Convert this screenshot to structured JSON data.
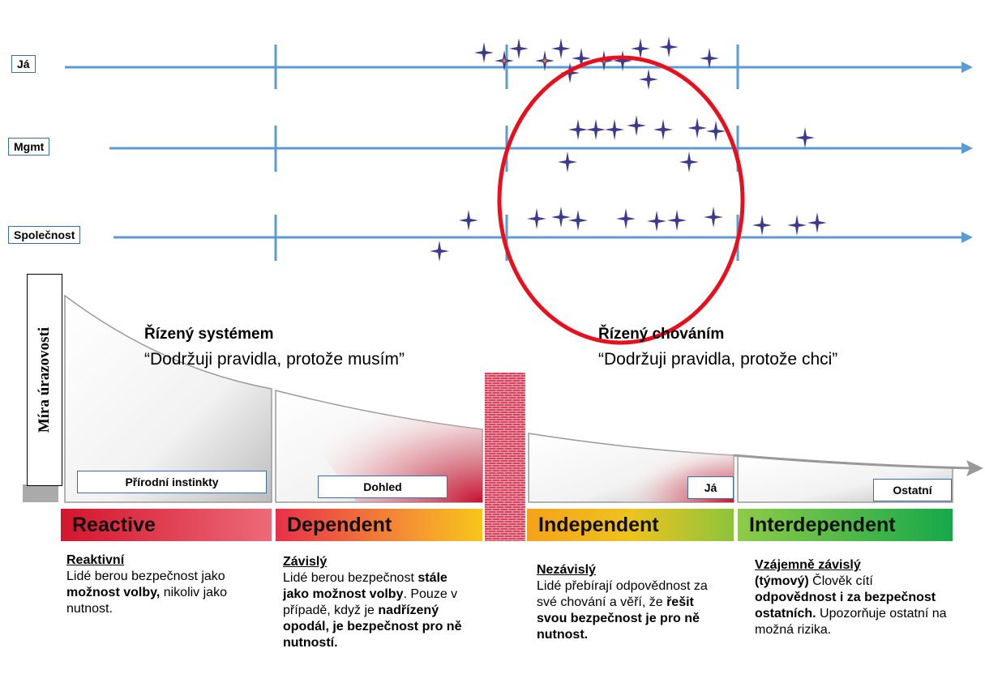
{
  "rows": [
    {
      "label": "Já"
    },
    {
      "label": "Mgmt"
    },
    {
      "label": "Společnost"
    }
  ],
  "y_axis_label": "Míra úrazovosti",
  "zones": [
    {
      "heading": "Řízený systémem",
      "quote": "“Dodržuji pravidla, protože musím”"
    },
    {
      "heading": "Řízený chováním",
      "quote": "“Dodržuji pravidla, protože chci”"
    }
  ],
  "boxes": [
    "Přírodní instinkty",
    "Dohled",
    "Já",
    "Ostatní"
  ],
  "stages": [
    {
      "name": "Reactive",
      "title": "Reaktivní",
      "text": [
        {
          "t": "Lidé berou bezpečnost jako ",
          "bold": false
        },
        {
          "t": "možnost volby,",
          "bold": true
        },
        {
          "t": " nikoliv jako nutnost.",
          "bold": false
        }
      ]
    },
    {
      "name": "Dependent",
      "title": "Závislý",
      "text": [
        {
          "t": "Lidé berou bezpečnost ",
          "bold": false
        },
        {
          "t": "stále jako možnost volby",
          "bold": true
        },
        {
          "t": ". Pouze v případě, když je ",
          "bold": false
        },
        {
          "t": "nadřízený opodál, je bezpečnost pro ně nutností.",
          "bold": true
        }
      ]
    },
    {
      "name": "Independent",
      "title": "Nezávislý",
      "text": [
        {
          "t": "Lidé přebírají odpovědnost za své chování a věří, že ",
          "bold": false
        },
        {
          "t": "řešit svou bezpečnost je pro ně nutnost.",
          "bold": true
        }
      ]
    },
    {
      "name": "Interdependent",
      "title": "Vzájemně závislý",
      "text": [
        {
          "t": "(týmový)",
          "bold": true
        },
        {
          "t": " Člověk cítí ",
          "bold": false
        },
        {
          "t": "odpovědnost i za bezpečnost ostatních.",
          "bold": true
        },
        {
          "t": "  Upozorňuje ostatní na možná rizika.",
          "bold": false
        }
      ]
    }
  ]
}
